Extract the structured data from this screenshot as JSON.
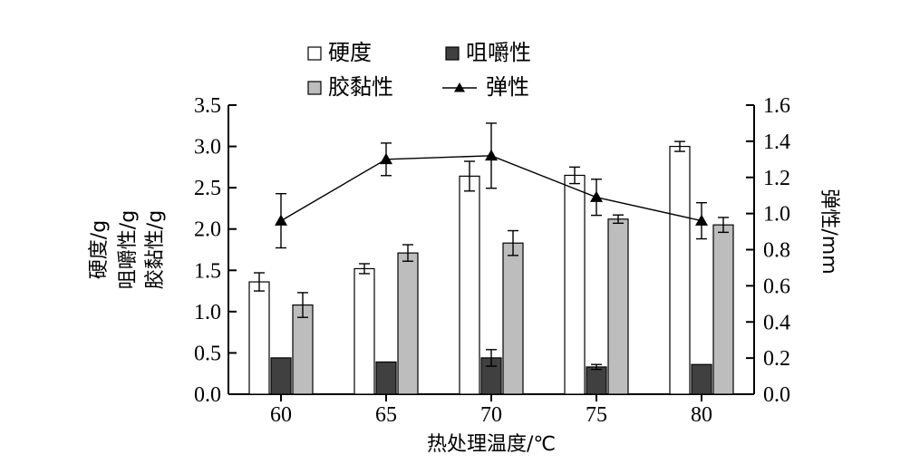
{
  "chart_data": {
    "type": "bar",
    "xlabel": "热处理温度/℃",
    "categories": [
      "60",
      "65",
      "70",
      "75",
      "80"
    ],
    "ylabel_left": [
      "硬度/g",
      "咀嚼性/g",
      "胶黏性/g"
    ],
    "ylabel_right": "弹性/mm",
    "ylim_left": [
      0,
      3.5
    ],
    "ylim_right": [
      0,
      1.6
    ],
    "yticks_left": [
      "0.0",
      "0.5",
      "1.0",
      "1.5",
      "2.0",
      "2.5",
      "3.0",
      "3.5"
    ],
    "yticks_right": [
      "0.0",
      "0.2",
      "0.4",
      "0.6",
      "0.8",
      "1.0",
      "1.2",
      "1.4",
      "1.6"
    ],
    "series": [
      {
        "name": "硬度",
        "axis": "left",
        "kind": "bar",
        "color": "#ffffff",
        "values": [
          1.36,
          1.52,
          2.64,
          2.65,
          3.0
        ],
        "errors": [
          0.11,
          0.06,
          0.18,
          0.1,
          0.06
        ]
      },
      {
        "name": "咀嚼性",
        "axis": "left",
        "kind": "bar",
        "color": "#404040",
        "values": [
          0.44,
          0.39,
          0.44,
          0.33,
          0.36
        ],
        "errors": [
          0.0,
          0.0,
          0.1,
          0.03,
          0.0
        ]
      },
      {
        "name": "胶黏性",
        "axis": "left",
        "kind": "bar",
        "color": "#bdbdbd",
        "values": [
          1.08,
          1.71,
          1.83,
          2.12,
          2.05
        ],
        "errors": [
          0.15,
          0.1,
          0.15,
          0.05,
          0.09
        ]
      },
      {
        "name": "弹性",
        "axis": "right",
        "kind": "line",
        "marker": "triangle",
        "values": [
          0.96,
          1.3,
          1.32,
          1.09,
          0.96
        ],
        "errors": [
          0.15,
          0.09,
          0.18,
          0.1,
          0.1
        ]
      }
    ],
    "legend_position": "top-center",
    "grid": false
  }
}
